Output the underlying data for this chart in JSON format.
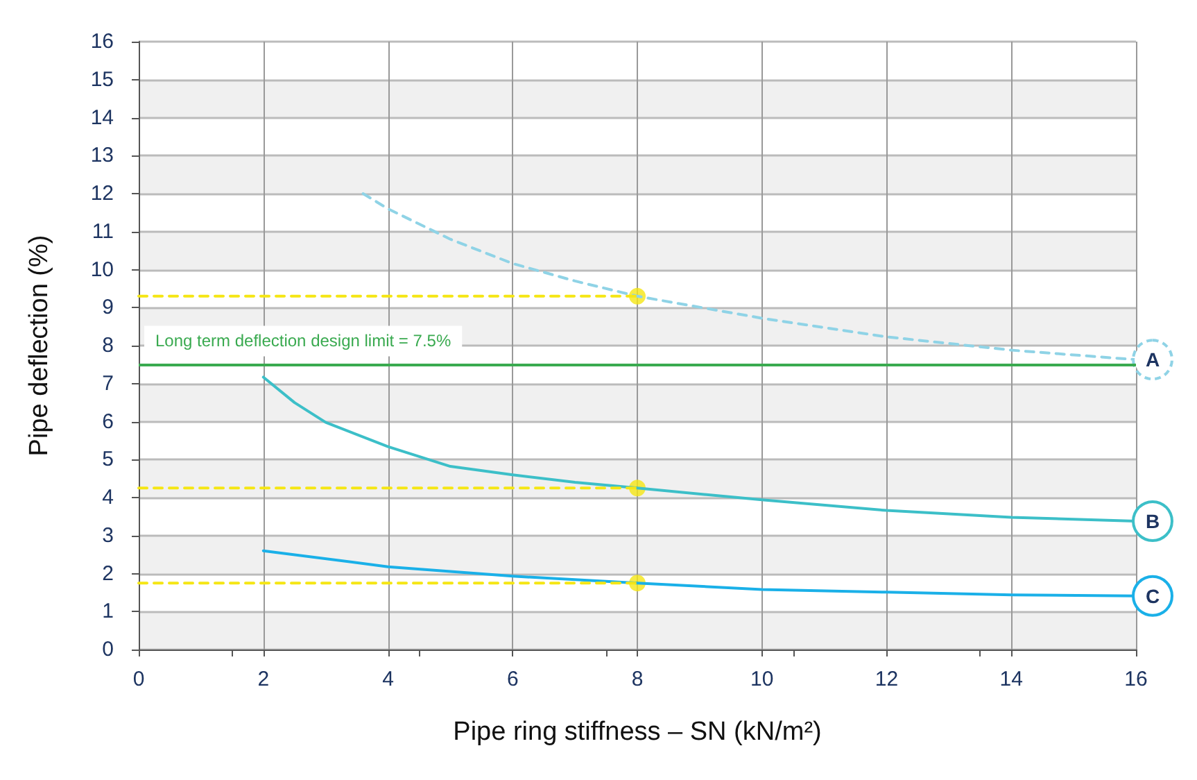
{
  "chart_data": {
    "type": "line",
    "xlabel": "Pipe ring stiffness – SN (kN/m²)",
    "ylabel": "Pipe deflection (%)",
    "xlim": [
      0,
      16
    ],
    "xticks": [
      0,
      2,
      4,
      6,
      8,
      10,
      12,
      14,
      16
    ],
    "ylim": [
      0,
      16
    ],
    "yticks": [
      0,
      1,
      2,
      3,
      4,
      5,
      6,
      7,
      8,
      9,
      10,
      11,
      12,
      13,
      14,
      15,
      16
    ],
    "grid": true,
    "legend": false,
    "marker": "none",
    "series": [
      {
        "name": "A",
        "color": "#8fd3e6",
        "line_style": "dashed",
        "x": [
          3.6,
          4,
          5,
          6,
          7,
          8,
          10,
          12,
          14,
          16
        ],
        "values": [
          12.0,
          11.6,
          10.8,
          10.16,
          9.7,
          9.3,
          8.72,
          8.23,
          7.88,
          7.63
        ]
      },
      {
        "name": "B",
        "color": "#3cbfc8",
        "line_style": "solid",
        "x": [
          2,
          2.5,
          3,
          4,
          5,
          6,
          7,
          8,
          10,
          12,
          14,
          16
        ],
        "values": [
          7.17,
          6.5,
          5.98,
          5.34,
          4.82,
          4.6,
          4.4,
          4.25,
          3.94,
          3.66,
          3.48,
          3.38
        ]
      },
      {
        "name": "C",
        "color": "#1ab0e8",
        "line_style": "solid",
        "x": [
          2,
          4,
          6,
          8,
          10,
          12,
          14,
          16
        ],
        "values": [
          2.6,
          2.18,
          1.93,
          1.75,
          1.58,
          1.51,
          1.44,
          1.41
        ]
      },
      {
        "color": "#f5e614",
        "line_style": "dashed",
        "x": [
          0,
          8
        ],
        "values": [
          9.3,
          9.3
        ]
      },
      {
        "color": "#f5e614",
        "line_style": "dashed",
        "x": [
          0,
          8
        ],
        "values": [
          4.25,
          4.25
        ]
      },
      {
        "color": "#f5e614",
        "line_style": "dashed",
        "x": [
          0,
          8
        ],
        "values": [
          1.75,
          1.75
        ]
      },
      {
        "type": "scatter",
        "marker": "circle",
        "color": "#f5e614",
        "x": [
          8,
          8,
          8
        ],
        "values": [
          9.3,
          4.25,
          1.75
        ]
      }
    ],
    "ref_lines": [
      {
        "axis": "y",
        "value": 7.5,
        "label": "Long term deflection design limit = 7.5%",
        "color": "#3aaa50",
        "line_style": "solid"
      }
    ]
  }
}
